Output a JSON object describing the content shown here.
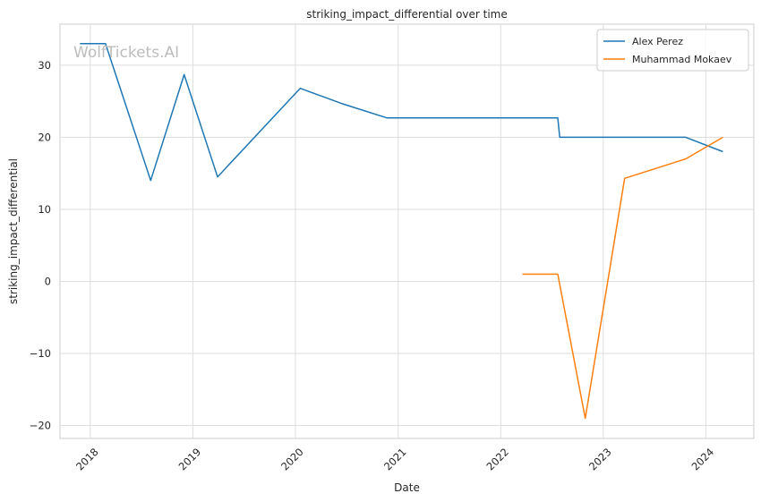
{
  "chart_data": {
    "type": "line",
    "title": "striking_impact_differential over time",
    "xlabel": "Date",
    "ylabel": "striking_impact_differential",
    "watermark": "WolfTickets.AI",
    "x_ticks": [
      "2018",
      "2019",
      "2020",
      "2021",
      "2022",
      "2023",
      "2024"
    ],
    "y_ticks": [
      -20,
      -10,
      0,
      10,
      20,
      30
    ],
    "xlim": [
      "2017-09-15",
      "2024-06-20"
    ],
    "ylim": [
      -21.8,
      35.7
    ],
    "grid": true,
    "legend_position": "top-right",
    "series": [
      {
        "name": "Alex Perez",
        "color": "#1f77b4",
        "points": [
          {
            "x": "2017-11-25",
            "y": 33
          },
          {
            "x": "2018-02-24",
            "y": 33
          },
          {
            "x": "2018-08-04",
            "y": 14
          },
          {
            "x": "2018-12-01",
            "y": 28.7
          },
          {
            "x": "2019-03-30",
            "y": 14.5
          },
          {
            "x": "2020-01-18",
            "y": 26.8
          },
          {
            "x": "2020-06-13",
            "y": 24.7
          },
          {
            "x": "2020-11-21",
            "y": 22.7
          },
          {
            "x": "2022-07-23",
            "y": 22.7
          },
          {
            "x": "2022-07-30",
            "y": 20
          },
          {
            "x": "2023-10-21",
            "y": 20
          },
          {
            "x": "2024-03-02",
            "y": 18
          }
        ]
      },
      {
        "name": "Muhammad Mokaev",
        "color": "#ff7f0e",
        "points": [
          {
            "x": "2022-03-19",
            "y": 1
          },
          {
            "x": "2022-07-23",
            "y": 1
          },
          {
            "x": "2022-10-29",
            "y": -19
          },
          {
            "x": "2023-03-18",
            "y": 14.3
          },
          {
            "x": "2023-10-21",
            "y": 17
          },
          {
            "x": "2024-03-02",
            "y": 20
          }
        ]
      }
    ]
  }
}
